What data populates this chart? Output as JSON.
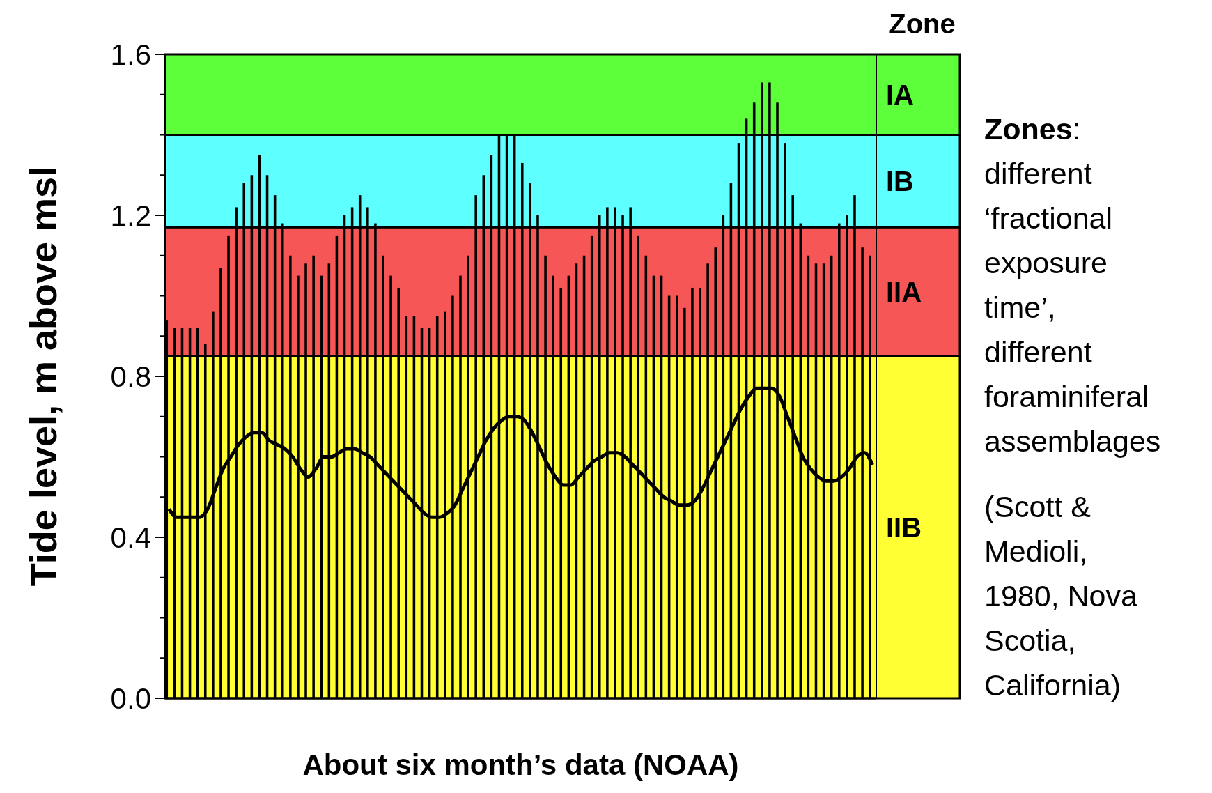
{
  "chart_data": {
    "type": "bar",
    "xlabel": "About six month’s data (NOAA)",
    "ylabel": "Tide level, m above msl",
    "categories": [
      null,
      null,
      null,
      null,
      null,
      null,
      null,
      null,
      null,
      null,
      null,
      null,
      null,
      null,
      null,
      null,
      null,
      null,
      null,
      null,
      null,
      null,
      null,
      null,
      null,
      null,
      null,
      null,
      null,
      null,
      null,
      null,
      null,
      null,
      null,
      null,
      null,
      null,
      null,
      null,
      null,
      null,
      null,
      null,
      null,
      null,
      null,
      null,
      null,
      null,
      null,
      null,
      null,
      null,
      null,
      null,
      null,
      null,
      null,
      null,
      null,
      null,
      null,
      null,
      null,
      null,
      null,
      null,
      null,
      null,
      null,
      null,
      null,
      null,
      null,
      null,
      null,
      null,
      null,
      null,
      null,
      null,
      null,
      null,
      null,
      null,
      null,
      null,
      null,
      null,
      null,
      null
    ],
    "series": [
      {
        "color": "#000000",
        "values": [
          0.94,
          0.92,
          0.92,
          0.92,
          0.92,
          0.88,
          0.96,
          1.07,
          1.15,
          1.22,
          1.28,
          1.3,
          1.35,
          1.3,
          1.25,
          1.18,
          1.1,
          1.05,
          1.08,
          1.1,
          1.05,
          1.08,
          1.15,
          1.2,
          1.22,
          1.25,
          1.22,
          1.18,
          1.1,
          1.05,
          1.02,
          0.95,
          0.95,
          0.92,
          0.92,
          0.95,
          0.96,
          1.0,
          1.05,
          1.1,
          1.25,
          1.3,
          1.35,
          1.4,
          1.4,
          1.4,
          1.33,
          1.28,
          1.2,
          1.1,
          1.05,
          1.02,
          1.05,
          1.08,
          1.1,
          1.15,
          1.2,
          1.22,
          1.22,
          1.2,
          1.22,
          1.15,
          1.1,
          1.05,
          1.05,
          1.0,
          1.0,
          0.97,
          1.02,
          1.02,
          1.08,
          1.12,
          1.2,
          1.28,
          1.38,
          1.44,
          1.48,
          1.53,
          1.53,
          1.48,
          1.38,
          1.25,
          1.18,
          1.1,
          1.08,
          1.08,
          1.1,
          1.18,
          1.2,
          1.25,
          1.12,
          1.1
        ]
      },
      {
        "type": "line",
        "color": "#000000",
        "values": [
          0.47,
          0.45,
          0.45,
          0.45,
          0.45,
          0.47,
          0.52,
          0.57,
          0.6,
          0.63,
          0.65,
          0.66,
          0.66,
          0.64,
          0.63,
          0.62,
          0.6,
          0.57,
          0.55,
          0.57,
          0.6,
          0.6,
          0.61,
          0.62,
          0.62,
          0.61,
          0.6,
          0.58,
          0.56,
          0.54,
          0.52,
          0.5,
          0.48,
          0.46,
          0.45,
          0.45,
          0.46,
          0.48,
          0.52,
          0.56,
          0.6,
          0.64,
          0.67,
          0.69,
          0.7,
          0.7,
          0.69,
          0.66,
          0.62,
          0.58,
          0.55,
          0.53,
          0.53,
          0.55,
          0.57,
          0.59,
          0.6,
          0.61,
          0.61,
          0.6,
          0.58,
          0.56,
          0.54,
          0.52,
          0.5,
          0.49,
          0.48,
          0.48,
          0.49,
          0.52,
          0.56,
          0.6,
          0.64,
          0.68,
          0.72,
          0.75,
          0.77,
          0.77,
          0.77,
          0.75,
          0.7,
          0.65,
          0.6,
          0.57,
          0.55,
          0.54,
          0.54,
          0.55,
          0.57,
          0.6,
          0.61,
          0.58
        ]
      }
    ],
    "ylim": [
      0,
      1.6
    ],
    "yticks": [
      {
        "value": 0,
        "label": "0.0"
      },
      {
        "value": 0.1,
        "label": null
      },
      {
        "value": 0.2,
        "label": null
      },
      {
        "value": 0.3,
        "label": null
      },
      {
        "value": 0.4,
        "label": "0.4"
      },
      {
        "value": 0.5,
        "label": null
      },
      {
        "value": 0.6,
        "label": null
      },
      {
        "value": 0.7,
        "label": null
      },
      {
        "value": 0.8,
        "label": "0.8"
      },
      {
        "value": 0.9,
        "label": null
      },
      {
        "value": 1.0,
        "label": null
      },
      {
        "value": 1.1,
        "label": null
      },
      {
        "value": 1.2,
        "label": "1.2"
      },
      {
        "value": 1.3,
        "label": null
      },
      {
        "value": 1.4,
        "label": null
      },
      {
        "value": 1.5,
        "label": null
      },
      {
        "value": 1.6,
        "label": "1.6"
      }
    ],
    "bands": [
      {
        "axis": "y",
        "from": 1.4,
        "to": 1.6,
        "label": "IA",
        "color": "#5cff3a"
      },
      {
        "axis": "y",
        "from": 1.17,
        "to": 1.4,
        "label": "IB",
        "color": "#5effff"
      },
      {
        "axis": "y",
        "from": 0.85,
        "to": 1.17,
        "label": "IIA",
        "color": "#f75656"
      },
      {
        "axis": "y",
        "from": 0,
        "to": 0.85,
        "label": "IIB",
        "color": "#ffff33"
      }
    ],
    "legend_title": "Zone",
    "annotations": [
      "Zones: different ‘fractional exposure time’, different foraminiferal assemblages",
      "(Scott & Medioli, 1980, Nova Scotia, California)"
    ],
    "grid": false
  }
}
